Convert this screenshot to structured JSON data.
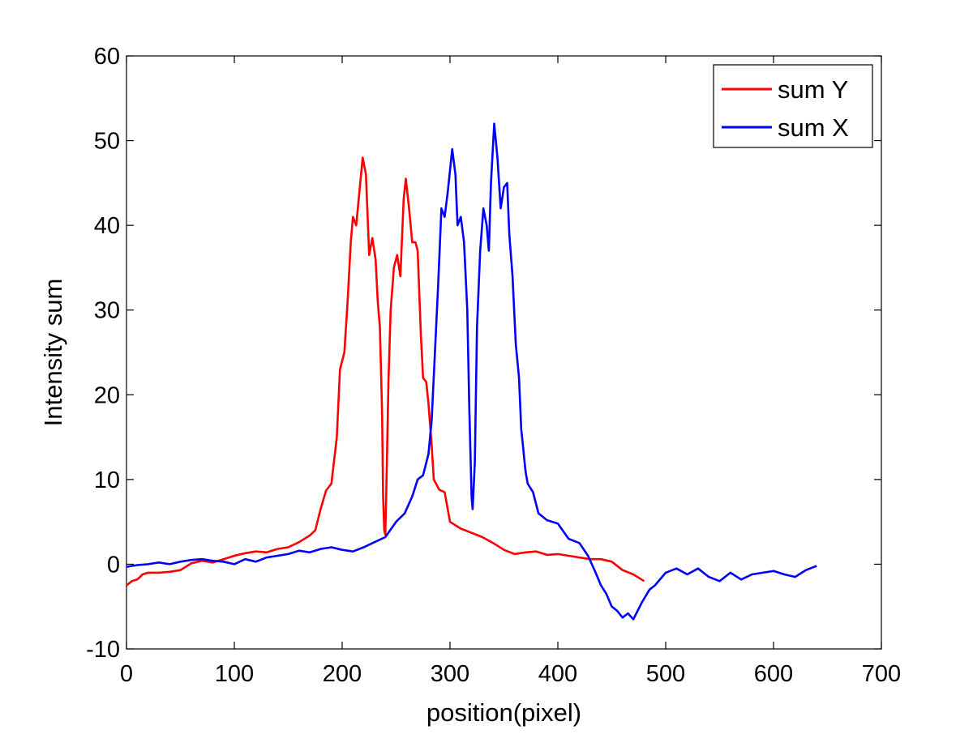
{
  "chart_data": {
    "type": "line",
    "title": "",
    "xlabel": "position(pixel)",
    "ylabel": "Intensity sum",
    "xlim": [
      0,
      700
    ],
    "ylim": [
      -10,
      60
    ],
    "xticks": [
      0,
      100,
      200,
      300,
      400,
      500,
      600,
      700
    ],
    "yticks": [
      -10,
      0,
      10,
      20,
      30,
      40,
      50,
      60
    ],
    "grid": false,
    "legend_position": "top-right",
    "series": [
      {
        "name": "sum Y",
        "color": "#ff0000",
        "points": [
          [
            0,
            -2.5
          ],
          [
            5,
            -2.0
          ],
          [
            10,
            -1.8
          ],
          [
            15,
            -1.2
          ],
          [
            20,
            -1.0
          ],
          [
            30,
            -1.0
          ],
          [
            40,
            -0.9
          ],
          [
            50,
            -0.7
          ],
          [
            55,
            -0.3
          ],
          [
            60,
            0.1
          ],
          [
            70,
            0.4
          ],
          [
            80,
            0.2
          ],
          [
            90,
            0.6
          ],
          [
            100,
            1.0
          ],
          [
            110,
            1.3
          ],
          [
            120,
            1.5
          ],
          [
            130,
            1.4
          ],
          [
            140,
            1.8
          ],
          [
            150,
            2.0
          ],
          [
            160,
            2.6
          ],
          [
            170,
            3.4
          ],
          [
            175,
            4.0
          ],
          [
            180,
            6.5
          ],
          [
            185,
            8.7
          ],
          [
            190,
            9.5
          ],
          [
            195,
            15
          ],
          [
            198,
            23
          ],
          [
            202,
            25
          ],
          [
            205,
            31
          ],
          [
            208,
            38
          ],
          [
            210,
            41
          ],
          [
            213,
            40
          ],
          [
            216,
            44
          ],
          [
            219,
            48
          ],
          [
            222,
            46
          ],
          [
            225,
            36.5
          ],
          [
            228,
            38.5
          ],
          [
            231,
            36
          ],
          [
            233,
            31
          ],
          [
            235,
            28
          ],
          [
            237,
            18
          ],
          [
            238,
            8
          ],
          [
            239,
            4
          ],
          [
            240,
            3.5
          ],
          [
            241,
            9
          ],
          [
            243,
            22
          ],
          [
            245,
            30
          ],
          [
            248,
            35
          ],
          [
            251,
            36.5
          ],
          [
            254,
            34
          ],
          [
            257,
            43
          ],
          [
            259,
            45.5
          ],
          [
            262,
            42
          ],
          [
            265,
            38
          ],
          [
            268,
            38
          ],
          [
            270,
            37
          ],
          [
            273,
            27
          ],
          [
            275,
            22
          ],
          [
            278,
            21.5
          ],
          [
            280,
            19
          ],
          [
            283,
            14
          ],
          [
            285,
            10
          ],
          [
            290,
            8.8
          ],
          [
            295,
            8.5
          ],
          [
            300,
            5
          ],
          [
            310,
            4.2
          ],
          [
            320,
            3.7
          ],
          [
            330,
            3.2
          ],
          [
            340,
            2.5
          ],
          [
            350,
            1.7
          ],
          [
            360,
            1.2
          ],
          [
            370,
            1.4
          ],
          [
            380,
            1.5
          ],
          [
            390,
            1.1
          ],
          [
            400,
            1.2
          ],
          [
            410,
            1.0
          ],
          [
            420,
            0.8
          ],
          [
            430,
            0.6
          ],
          [
            440,
            0.6
          ],
          [
            450,
            0.3
          ],
          [
            460,
            -0.7
          ],
          [
            470,
            -1.2
          ],
          [
            480,
            -2.0
          ]
        ]
      },
      {
        "name": "sum X",
        "color": "#0000ff",
        "points": [
          [
            0,
            -0.3
          ],
          [
            10,
            -0.1
          ],
          [
            20,
            0.0
          ],
          [
            30,
            0.2
          ],
          [
            40,
            0.0
          ],
          [
            50,
            0.3
          ],
          [
            60,
            0.5
          ],
          [
            70,
            0.6
          ],
          [
            80,
            0.4
          ],
          [
            90,
            0.3
          ],
          [
            100,
            0.0
          ],
          [
            110,
            0.6
          ],
          [
            120,
            0.3
          ],
          [
            130,
            0.8
          ],
          [
            140,
            1.0
          ],
          [
            150,
            1.2
          ],
          [
            160,
            1.6
          ],
          [
            170,
            1.4
          ],
          [
            180,
            1.8
          ],
          [
            190,
            2.0
          ],
          [
            200,
            1.7
          ],
          [
            210,
            1.5
          ],
          [
            220,
            2.0
          ],
          [
            230,
            2.6
          ],
          [
            240,
            3.2
          ],
          [
            250,
            5.0
          ],
          [
            258,
            6.0
          ],
          [
            265,
            8.0
          ],
          [
            270,
            10.0
          ],
          [
            275,
            10.5
          ],
          [
            280,
            13.0
          ],
          [
            283,
            17
          ],
          [
            286,
            25
          ],
          [
            289,
            33
          ],
          [
            292,
            42
          ],
          [
            295,
            41
          ],
          [
            298,
            44
          ],
          [
            302,
            49
          ],
          [
            305,
            46
          ],
          [
            307,
            40
          ],
          [
            310,
            41
          ],
          [
            313,
            38
          ],
          [
            316,
            30
          ],
          [
            318,
            18
          ],
          [
            320,
            8
          ],
          [
            321,
            6.5
          ],
          [
            323,
            12
          ],
          [
            325,
            28
          ],
          [
            328,
            37
          ],
          [
            331,
            42
          ],
          [
            334,
            40
          ],
          [
            336,
            37
          ],
          [
            338,
            45
          ],
          [
            341,
            52
          ],
          [
            344,
            48
          ],
          [
            347,
            42
          ],
          [
            350,
            44.5
          ],
          [
            353,
            45
          ],
          [
            355,
            39
          ],
          [
            358,
            34
          ],
          [
            361,
            26
          ],
          [
            364,
            22
          ],
          [
            366,
            16
          ],
          [
            370,
            11
          ],
          [
            372,
            9.5
          ],
          [
            377,
            8.5
          ],
          [
            382,
            6
          ],
          [
            390,
            5.2
          ],
          [
            400,
            4.8
          ],
          [
            410,
            3.0
          ],
          [
            420,
            2.5
          ],
          [
            428,
            1.0
          ],
          [
            435,
            -1.0
          ],
          [
            440,
            -2.5
          ],
          [
            445,
            -3.5
          ],
          [
            450,
            -5.0
          ],
          [
            455,
            -5.5
          ],
          [
            460,
            -6.3
          ],
          [
            465,
            -5.8
          ],
          [
            470,
            -6.5
          ],
          [
            478,
            -4.5
          ],
          [
            485,
            -3.0
          ],
          [
            490,
            -2.5
          ],
          [
            500,
            -1.0
          ],
          [
            510,
            -0.5
          ],
          [
            520,
            -1.2
          ],
          [
            530,
            -0.5
          ],
          [
            540,
            -1.5
          ],
          [
            550,
            -2.0
          ],
          [
            560,
            -1.0
          ],
          [
            570,
            -1.8
          ],
          [
            580,
            -1.2
          ],
          [
            590,
            -1.0
          ],
          [
            600,
            -0.8
          ],
          [
            610,
            -1.2
          ],
          [
            620,
            -1.5
          ],
          [
            630,
            -0.7
          ],
          [
            640,
            -0.2
          ]
        ]
      }
    ]
  }
}
